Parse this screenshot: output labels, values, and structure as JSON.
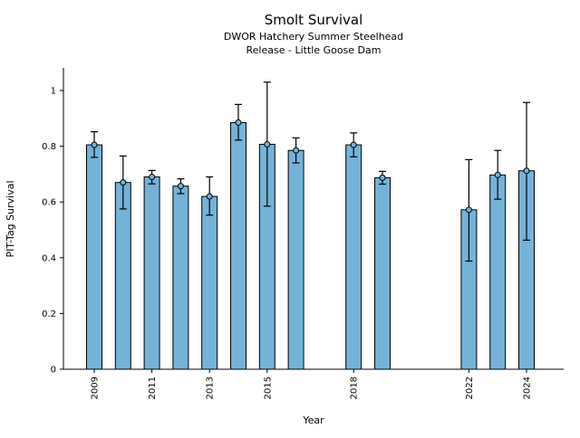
{
  "chart_data": {
    "type": "bar",
    "title": "Smolt Survival",
    "subtitle1": "DWOR Hatchery Summer Steelhead",
    "subtitle2": "Release - Little Goose Dam",
    "xlabel": "Year",
    "ylabel": "PIT-Tag Survival",
    "ylim": [
      0,
      1.08
    ],
    "yticks": [
      0,
      0.2,
      0.4,
      0.6,
      0.8,
      1
    ],
    "xticks": [
      2009,
      2011,
      2013,
      2015,
      2018,
      2022,
      2024
    ],
    "grid": false,
    "legend": "none",
    "bar_color": "#74b2d8",
    "bar_edge_color": "#000000",
    "error_color": "#000000",
    "series": [
      {
        "year": 2009,
        "value": 0.805,
        "err_low": 0.76,
        "err_high": 0.852
      },
      {
        "year": 2010,
        "value": 0.67,
        "err_low": 0.575,
        "err_high": 0.765
      },
      {
        "year": 2011,
        "value": 0.69,
        "err_low": 0.665,
        "err_high": 0.713
      },
      {
        "year": 2012,
        "value": 0.657,
        "err_low": 0.63,
        "err_high": 0.683
      },
      {
        "year": 2013,
        "value": 0.62,
        "err_low": 0.553,
        "err_high": 0.69
      },
      {
        "year": 2014,
        "value": 0.885,
        "err_low": 0.822,
        "err_high": 0.95
      },
      {
        "year": 2015,
        "value": 0.807,
        "err_low": 0.585,
        "err_high": 1.03
      },
      {
        "year": 2016,
        "value": 0.785,
        "err_low": 0.74,
        "err_high": 0.83
      },
      {
        "year": 2018,
        "value": 0.805,
        "err_low": 0.762,
        "err_high": 0.848
      },
      {
        "year": 2019,
        "value": 0.687,
        "err_low": 0.664,
        "err_high": 0.71
      },
      {
        "year": 2022,
        "value": 0.572,
        "err_low": 0.388,
        "err_high": 0.752
      },
      {
        "year": 2023,
        "value": 0.697,
        "err_low": 0.61,
        "err_high": 0.785
      },
      {
        "year": 2024,
        "value": 0.712,
        "err_low": 0.463,
        "err_high": 0.957
      }
    ]
  }
}
